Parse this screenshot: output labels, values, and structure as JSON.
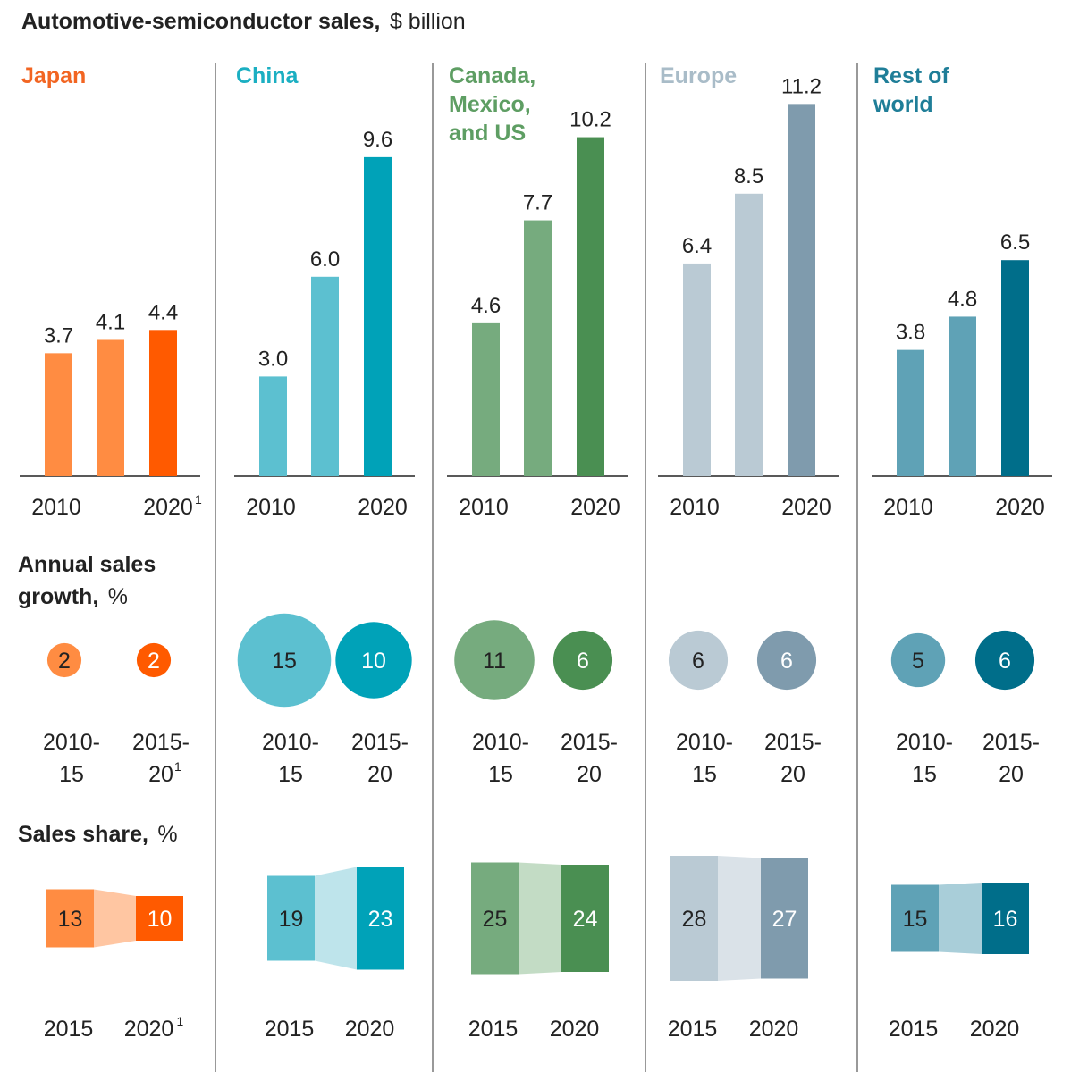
{
  "title": "Automotive-semiconductor sales,",
  "title_unit": "$ billion",
  "growth_section": {
    "label_line1": "Annual sales",
    "label_line2": "growth,",
    "unit": "%"
  },
  "share_section": {
    "label": "Sales share,",
    "unit": "%"
  },
  "footnote_marker": "1",
  "chart_data": [
    {
      "type": "bar",
      "title": "Automotive-semiconductor sales, $ billion",
      "series": [
        {
          "name": "Japan",
          "name_lines": [
            "Japan"
          ],
          "color": "#F26522",
          "bar_colors": [
            "#FF8C42",
            "#FF8C42",
            "#FF5A00"
          ],
          "values": [
            3.7,
            4.1,
            4.4
          ],
          "labels": [
            "3.7",
            "4.1",
            "4.4"
          ]
        },
        {
          "name": "China",
          "name_lines": [
            "China"
          ],
          "color": "#1BAFC2",
          "bar_colors": [
            "#5CC0D0",
            "#5CC0D0",
            "#00A2B8"
          ],
          "values": [
            3.0,
            6.0,
            9.6
          ],
          "labels": [
            "3.0",
            "6.0",
            "9.6"
          ]
        },
        {
          "name": "Canada, Mexico, and US",
          "name_lines": [
            "Canada,",
            "Mexico,",
            "and US"
          ],
          "color": "#5E9E63",
          "bar_colors": [
            "#76AB7E",
            "#76AB7E",
            "#4A8F52"
          ],
          "values": [
            4.6,
            7.7,
            10.2
          ],
          "labels": [
            "4.6",
            "7.7",
            "10.2"
          ]
        },
        {
          "name": "Europe",
          "name_lines": [
            "Europe"
          ],
          "color": "#A9BCC8",
          "bar_colors": [
            "#BACAD4",
            "#BACAD4",
            "#7F9BAD"
          ],
          "values": [
            6.4,
            8.5,
            11.2
          ],
          "labels": [
            "6.4",
            "8.5",
            "11.2"
          ]
        },
        {
          "name": "Rest of world",
          "name_lines": [
            "Rest of",
            "world"
          ],
          "color": "#1F7E98",
          "bar_colors": [
            "#5FA2B6",
            "#5FA2B6",
            "#006E8A"
          ],
          "values": [
            3.8,
            4.8,
            6.5
          ],
          "labels": [
            "3.8",
            "4.8",
            "6.5"
          ]
        }
      ],
      "x_ticks": [
        {
          "start": "2010",
          "end": "2020",
          "end_footnote": true
        },
        {
          "start": "2010",
          "end": "2020",
          "end_footnote": false
        },
        {
          "start": "2010",
          "end": "2020",
          "end_footnote": false
        },
        {
          "start": "2010",
          "end": "2020",
          "end_footnote": false
        },
        {
          "start": "2010",
          "end": "2020",
          "end_footnote": false
        }
      ],
      "ylim": [
        0,
        11.2
      ]
    },
    {
      "type": "scatter",
      "title": "Annual sales growth, %",
      "periods": [
        [
          [
            "2010-",
            "15"
          ],
          [
            "2015-",
            "20"
          ]
        ],
        [
          [
            "2010-",
            "15"
          ],
          [
            "2015-",
            "20"
          ]
        ],
        [
          [
            "2010-",
            "15"
          ],
          [
            "2015-",
            "20"
          ]
        ],
        [
          [
            "2010-",
            "15"
          ],
          [
            "2015-",
            "20"
          ]
        ],
        [
          [
            "2010-",
            "15"
          ],
          [
            "2015-",
            "20"
          ]
        ]
      ],
      "period2_footnote": [
        true,
        false,
        false,
        false,
        false
      ],
      "values": [
        [
          2,
          2
        ],
        [
          15,
          10
        ],
        [
          11,
          6
        ],
        [
          6,
          6
        ],
        [
          5,
          6
        ]
      ],
      "labels": [
        [
          "2",
          "2"
        ],
        [
          "15",
          "10"
        ],
        [
          "11",
          "6"
        ],
        [
          "6",
          "6"
        ],
        [
          "5",
          "6"
        ]
      ],
      "bubble_colors": [
        [
          "#FF8C42",
          "#FF5A00"
        ],
        [
          "#5CC0D0",
          "#00A2B8"
        ],
        [
          "#76AB7E",
          "#4A8F52"
        ],
        [
          "#BACAD4",
          "#7F9BAD"
        ],
        [
          "#5FA2B6",
          "#006E8A"
        ]
      ],
      "label_colors": [
        [
          "#222222",
          "#ffffff"
        ],
        [
          "#222222",
          "#ffffff"
        ],
        [
          "#222222",
          "#ffffff"
        ],
        [
          "#222222",
          "#ffffff"
        ],
        [
          "#222222",
          "#ffffff"
        ]
      ]
    },
    {
      "type": "bar",
      "title": "Sales share, %",
      "years": [
        [
          "2015",
          "2020"
        ],
        [
          "2015",
          "2020"
        ],
        [
          "2015",
          "2020"
        ],
        [
          "2015",
          "2020"
        ],
        [
          "2015",
          "2020"
        ]
      ],
      "year2_footnote": [
        true,
        false,
        false,
        false,
        false
      ],
      "values": [
        [
          13,
          10
        ],
        [
          19,
          23
        ],
        [
          25,
          24
        ],
        [
          28,
          27
        ],
        [
          15,
          16
        ]
      ],
      "labels": [
        [
          "13",
          "10"
        ],
        [
          "19",
          "23"
        ],
        [
          "25",
          "24"
        ],
        [
          "28",
          "27"
        ],
        [
          "15",
          "16"
        ]
      ],
      "block_colors": [
        [
          "#FF8C42",
          "#FF5A00"
        ],
        [
          "#5CC0D0",
          "#00A2B8"
        ],
        [
          "#76AB7E",
          "#4A8F52"
        ],
        [
          "#BACAD4",
          "#7F9BAD"
        ],
        [
          "#5FA2B6",
          "#006E8A"
        ]
      ],
      "connector_colors": [
        "#FFC6A2",
        "#BEE4EB",
        "#C3DCC5",
        "#DAE2E8",
        "#A9CED9"
      ],
      "label_colors": [
        [
          "#222222",
          "#ffffff"
        ],
        [
          "#222222",
          "#ffffff"
        ],
        [
          "#222222",
          "#ffffff"
        ],
        [
          "#222222",
          "#ffffff"
        ],
        [
          "#222222",
          "#ffffff"
        ]
      ]
    }
  ]
}
